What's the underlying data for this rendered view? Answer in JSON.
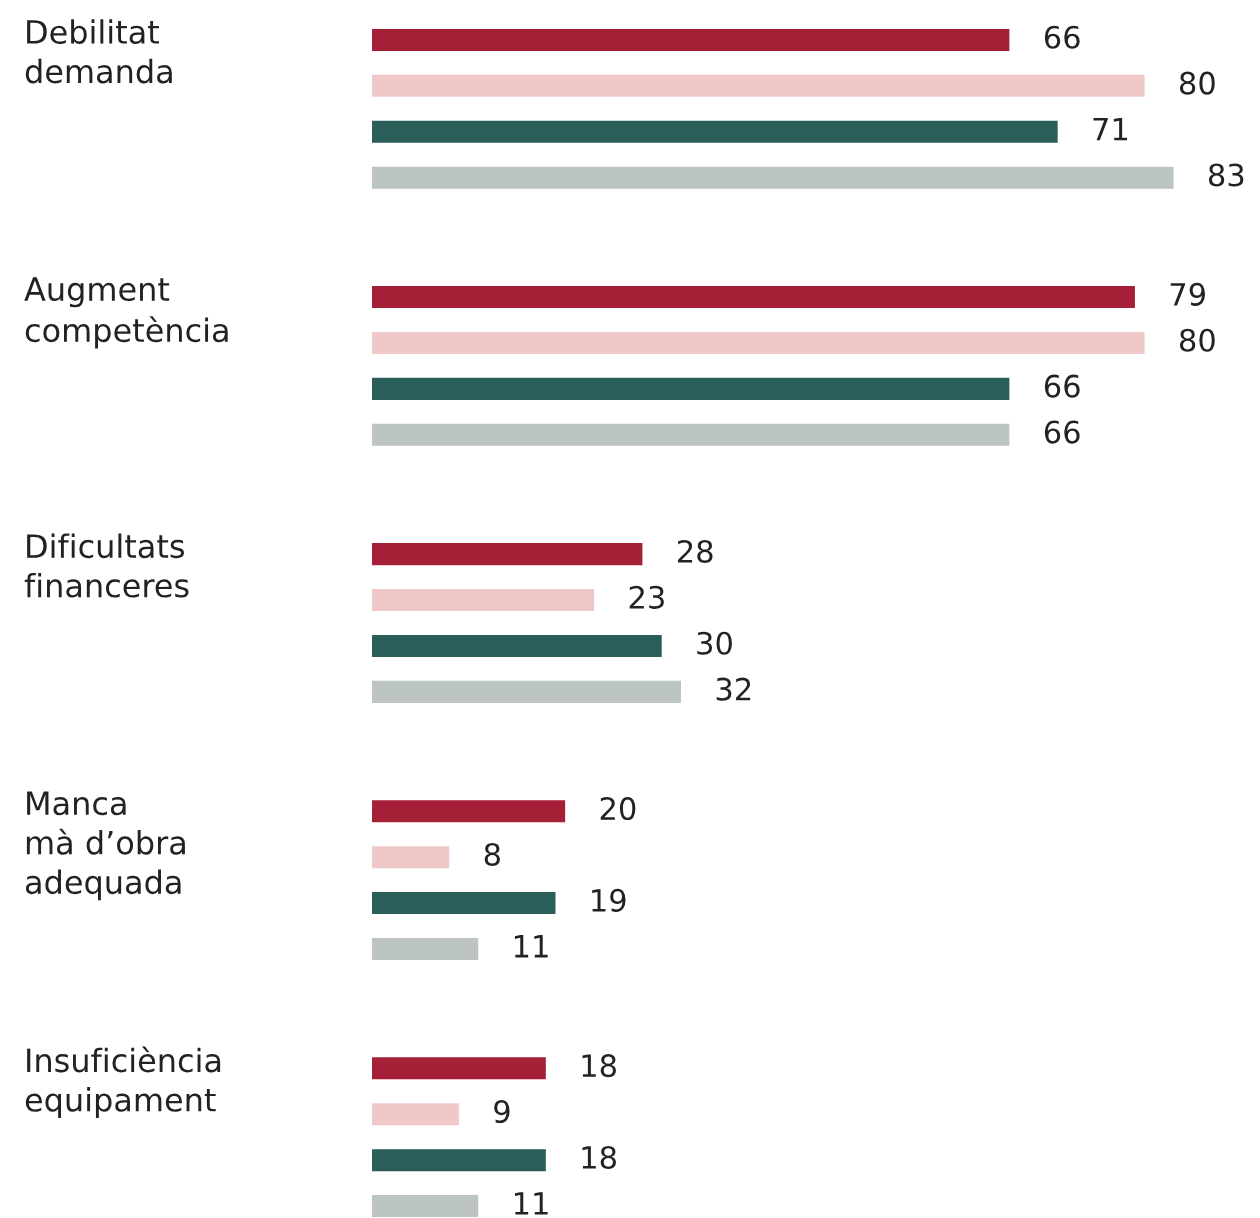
{
  "chart_data": {
    "type": "bar",
    "orientation": "horizontal",
    "categories": [
      "Debilitat\ndemanda",
      "Augment\ncompetència",
      "Dificultats\nfinanceres",
      "Manca\nmà d’obra\nadequada",
      "Insuficiència\nequipament"
    ],
    "series": [
      {
        "color": "#a51f37",
        "values": [
          66,
          79,
          28,
          20,
          18
        ]
      },
      {
        "color": "#f0c8c8",
        "values": [
          80,
          80,
          23,
          8,
          9
        ]
      },
      {
        "color": "#2a5e58",
        "values": [
          71,
          66,
          30,
          19,
          18
        ]
      },
      {
        "color": "#bcc5c4",
        "values": [
          83,
          66,
          32,
          11,
          11
        ]
      }
    ],
    "data_labels": true
  }
}
